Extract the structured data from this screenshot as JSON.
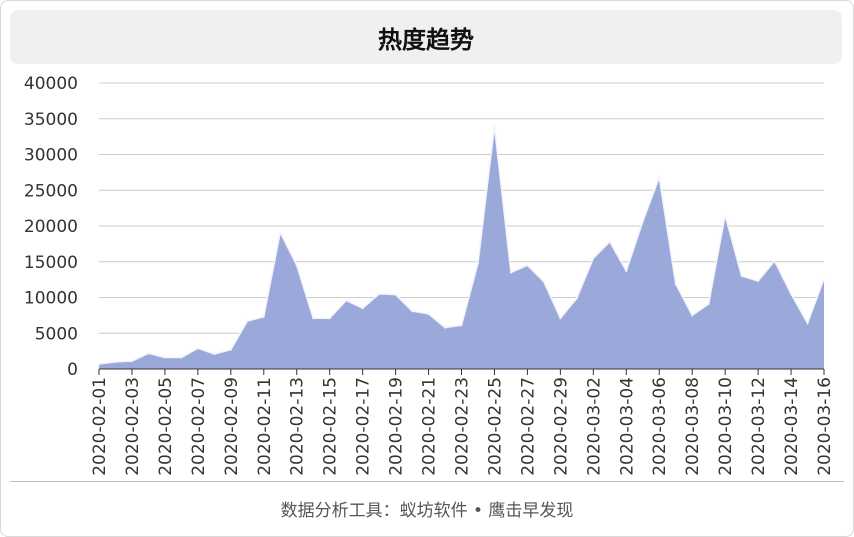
{
  "title": "热度趋势",
  "footer": "数据分析工具：蚁坊软件 • 鹰击早发现",
  "colors": {
    "area": "#9aa9d9",
    "line": "#f2f4fb",
    "grid": "#cccccc",
    "axis": "#333333"
  },
  "chart_data": {
    "type": "area",
    "title": "热度趋势",
    "xlabel": "",
    "ylabel": "",
    "ylim": [
      0,
      40000
    ],
    "yticks": [
      0,
      5000,
      10000,
      15000,
      20000,
      25000,
      30000,
      35000,
      40000
    ],
    "grid": true,
    "legend": "none",
    "x_tick_labels": [
      "2020-02-01",
      "2020-02-03",
      "2020-02-05",
      "2020-02-07",
      "2020-02-09",
      "2020-02-11",
      "2020-02-13",
      "2020-02-15",
      "2020-02-17",
      "2020-02-19",
      "2020-02-21",
      "2020-02-23",
      "2020-02-25",
      "2020-02-27",
      "2020-02-29",
      "2020-03-02",
      "2020-03-04",
      "2020-03-06",
      "2020-03-08",
      "2020-03-10",
      "2020-03-12",
      "2020-03-14",
      "2020-03-16"
    ],
    "x": [
      "2020-02-01",
      "2020-02-02",
      "2020-02-03",
      "2020-02-04",
      "2020-02-05",
      "2020-02-06",
      "2020-02-07",
      "2020-02-08",
      "2020-02-09",
      "2020-02-10",
      "2020-02-11",
      "2020-02-12",
      "2020-02-13",
      "2020-02-14",
      "2020-02-15",
      "2020-02-16",
      "2020-02-17",
      "2020-02-18",
      "2020-02-19",
      "2020-02-20",
      "2020-02-21",
      "2020-02-22",
      "2020-02-23",
      "2020-02-24",
      "2020-02-25",
      "2020-02-26",
      "2020-02-27",
      "2020-02-28",
      "2020-02-29",
      "2020-03-01",
      "2020-03-02",
      "2020-03-03",
      "2020-03-04",
      "2020-03-05",
      "2020-03-06",
      "2020-03-07",
      "2020-03-08",
      "2020-03-09",
      "2020-03-10",
      "2020-03-11",
      "2020-03-12",
      "2020-03-13",
      "2020-03-14",
      "2020-03-15",
      "2020-03-16"
    ],
    "values": [
      700,
      1000,
      1100,
      2200,
      1600,
      1600,
      2900,
      2100,
      2700,
      6700,
      7300,
      19100,
      14500,
      7100,
      7100,
      9600,
      8500,
      10500,
      10400,
      8100,
      7700,
      5800,
      6100,
      14800,
      33900,
      13500,
      14500,
      12200,
      7100,
      9900,
      15500,
      17800,
      13700,
      20600,
      26800,
      11900,
      7500,
      9100,
      21500,
      13000,
      12300,
      15100,
      10500,
      6400,
      12600
    ]
  }
}
